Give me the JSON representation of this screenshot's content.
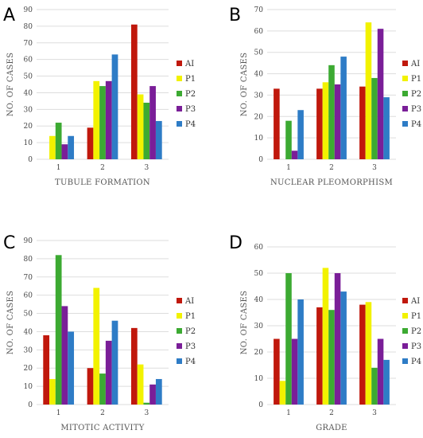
{
  "series_colors": {
    "AI": "#c0180c",
    "P1": "#f2f200",
    "P2": "#3caa32",
    "P3": "#7a1e98",
    "P4": "#2e7cc6"
  },
  "chart_data": [
    {
      "panel": "A",
      "type": "bar",
      "xlabel": "TUBULE FORMATION",
      "ylabel": "NO. OF CASES",
      "categories": [
        "1",
        "2",
        "3"
      ],
      "ylim": [
        0,
        90
      ],
      "yticks": [
        0,
        10,
        20,
        30,
        40,
        50,
        60,
        70,
        80,
        90
      ],
      "grid": true,
      "legend": "right",
      "series": [
        {
          "name": "AI",
          "values": [
            0,
            19,
            81
          ]
        },
        {
          "name": "P1",
          "values": [
            14,
            47,
            39
          ]
        },
        {
          "name": "P2",
          "values": [
            22,
            44,
            34
          ]
        },
        {
          "name": "P3",
          "values": [
            9,
            47,
            44
          ]
        },
        {
          "name": "P4",
          "values": [
            14,
            63,
            23
          ]
        }
      ]
    },
    {
      "panel": "B",
      "type": "bar",
      "xlabel": "NUCLEAR PLEOMORPHISM",
      "ylabel": "NO. OF CASES",
      "categories": [
        "1",
        "2",
        "3"
      ],
      "ylim": [
        0,
        70
      ],
      "yticks": [
        0,
        10,
        20,
        30,
        40,
        50,
        60,
        70
      ],
      "grid": true,
      "legend": "right",
      "series": [
        {
          "name": "AI",
          "values": [
            33,
            33,
            34
          ]
        },
        {
          "name": "P1",
          "values": [
            0,
            36,
            64
          ]
        },
        {
          "name": "P2",
          "values": [
            18,
            44,
            38
          ]
        },
        {
          "name": "P3",
          "values": [
            4,
            35,
            61
          ]
        },
        {
          "name": "P4",
          "values": [
            23,
            48,
            29
          ]
        }
      ]
    },
    {
      "panel": "C",
      "type": "bar",
      "xlabel": "MITOTIC ACTIVITY",
      "ylabel": "NO. OF CASES",
      "categories": [
        "1",
        "2",
        "3"
      ],
      "ylim": [
        0,
        90
      ],
      "yticks": [
        0,
        10,
        20,
        30,
        40,
        50,
        60,
        70,
        80,
        90
      ],
      "grid": true,
      "legend": "right",
      "series": [
        {
          "name": "AI",
          "values": [
            38,
            20,
            42
          ]
        },
        {
          "name": "P1",
          "values": [
            14,
            64,
            22
          ]
        },
        {
          "name": "P2",
          "values": [
            82,
            17,
            1
          ]
        },
        {
          "name": "P3",
          "values": [
            54,
            35,
            11
          ]
        },
        {
          "name": "P4",
          "values": [
            40,
            46,
            14
          ]
        }
      ]
    },
    {
      "panel": "D",
      "type": "bar",
      "xlabel": "GRADE",
      "ylabel": "NO. OF CASES",
      "categories": [
        "1",
        "2",
        "3"
      ],
      "ylim": [
        0,
        60
      ],
      "yticks": [
        0,
        10,
        20,
        30,
        40,
        50,
        60
      ],
      "grid": true,
      "legend": "right",
      "series": [
        {
          "name": "AI",
          "values": [
            25,
            37,
            38
          ]
        },
        {
          "name": "P1",
          "values": [
            9,
            52,
            39
          ]
        },
        {
          "name": "P2",
          "values": [
            50,
            36,
            14
          ]
        },
        {
          "name": "P3",
          "values": [
            25,
            50,
            25
          ]
        },
        {
          "name": "P4",
          "values": [
            40,
            43,
            17
          ]
        }
      ]
    }
  ]
}
